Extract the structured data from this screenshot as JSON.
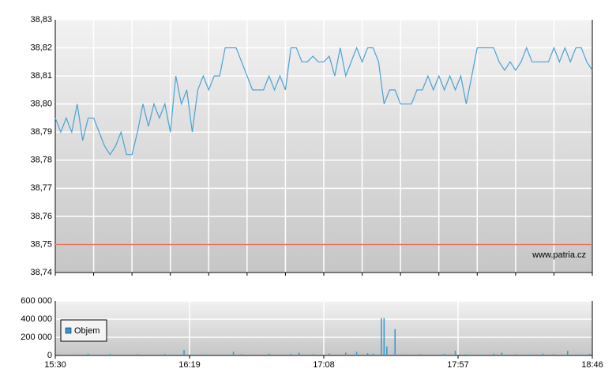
{
  "chart_data": [
    {
      "type": "line",
      "color": "#4aa3d4",
      "xlim": [
        930,
        1126
      ],
      "xticks": [
        930,
        944,
        958,
        972,
        986,
        1000,
        1014,
        1028,
        1042,
        1056,
        1070,
        1084,
        1098,
        1112,
        1126
      ],
      "ylim": [
        38.74,
        38.83
      ],
      "yticks": [
        {
          "value": 38.74,
          "label": "38,74"
        },
        {
          "value": 38.75,
          "label": "38,75"
        },
        {
          "value": 38.76,
          "label": "38,76"
        },
        {
          "value": 38.77,
          "label": "38,77"
        },
        {
          "value": 38.78,
          "label": "38,78"
        },
        {
          "value": 38.79,
          "label": "38,79"
        },
        {
          "value": 38.8,
          "label": "38,80"
        },
        {
          "value": 38.81,
          "label": "38,81"
        },
        {
          "value": 38.82,
          "label": "38,82"
        },
        {
          "value": 38.83,
          "label": "38,83"
        }
      ],
      "grid": true,
      "reference_line": 38.75,
      "reference_color": "#e8705e",
      "watermark": "www.patria.cz",
      "x": [
        930,
        932,
        934,
        936,
        938,
        940,
        942,
        944,
        946,
        948,
        950,
        952,
        954,
        956,
        958,
        960,
        962,
        964,
        966,
        968,
        970,
        972,
        974,
        976,
        978,
        980,
        982,
        984,
        986,
        988,
        990,
        992,
        994,
        996,
        998,
        1000,
        1002,
        1004,
        1006,
        1008,
        1010,
        1012,
        1014,
        1016,
        1018,
        1020,
        1022,
        1024,
        1026,
        1028,
        1030,
        1032,
        1034,
        1036,
        1038,
        1040,
        1042,
        1044,
        1046,
        1048,
        1050,
        1052,
        1054,
        1056,
        1058,
        1060,
        1062,
        1064,
        1066,
        1068,
        1070,
        1072,
        1074,
        1076,
        1078,
        1080,
        1082,
        1084,
        1086,
        1088,
        1090,
        1092,
        1094,
        1096,
        1098,
        1100,
        1102,
        1104,
        1106,
        1108,
        1110,
        1112,
        1114,
        1116,
        1118,
        1120,
        1122,
        1124,
        1126
      ],
      "values": [
        38.795,
        38.79,
        38.795,
        38.79,
        38.8,
        38.787,
        38.795,
        38.795,
        38.79,
        38.785,
        38.782,
        38.785,
        38.79,
        38.782,
        38.782,
        38.79,
        38.8,
        38.792,
        38.8,
        38.795,
        38.8,
        38.79,
        38.81,
        38.8,
        38.805,
        38.79,
        38.805,
        38.81,
        38.805,
        38.81,
        38.81,
        38.82,
        38.82,
        38.82,
        38.815,
        38.81,
        38.805,
        38.805,
        38.805,
        38.81,
        38.805,
        38.81,
        38.805,
        38.82,
        38.82,
        38.815,
        38.815,
        38.817,
        38.815,
        38.815,
        38.817,
        38.81,
        38.82,
        38.81,
        38.815,
        38.82,
        38.815,
        38.82,
        38.82,
        38.815,
        38.8,
        38.805,
        38.805,
        38.8,
        38.8,
        38.8,
        38.805,
        38.805,
        38.81,
        38.805,
        38.81,
        38.805,
        38.81,
        38.805,
        38.81,
        38.8,
        38.81,
        38.82,
        38.82,
        38.82,
        38.82,
        38.815,
        38.812,
        38.815,
        38.812,
        38.815,
        38.82,
        38.815,
        38.815,
        38.815,
        38.815,
        38.82,
        38.815,
        38.82,
        38.815,
        38.82,
        38.82,
        38.815,
        38.812
      ]
    },
    {
      "type": "bar",
      "xlim": [
        930,
        1126
      ],
      "xticks": [
        {
          "value": 930,
          "label": "15:30"
        },
        {
          "value": 979,
          "label": "16:19"
        },
        {
          "value": 1028,
          "label": "17:08"
        },
        {
          "value": 1077,
          "label": "17:57"
        },
        {
          "value": 1126,
          "label": "18:46"
        }
      ],
      "ylim": [
        0,
        600000
      ],
      "yticks": [
        {
          "value": 0,
          "label": "0"
        },
        {
          "value": 200000,
          "label": "200 000"
        },
        {
          "value": 400000,
          "label": "400 000"
        },
        {
          "value": 600000,
          "label": "600 000"
        }
      ],
      "grid": true,
      "legend": "left",
      "series": [
        {
          "name": "Objem",
          "color": "#3399cc",
          "x": [
            931,
            934,
            938,
            942,
            946,
            950,
            955,
            960,
            965,
            970,
            977,
            980,
            985,
            990,
            995,
            998,
            1003,
            1008,
            1012,
            1016,
            1019,
            1024,
            1030,
            1036,
            1040,
            1044,
            1046,
            1049,
            1050,
            1051,
            1054,
            1058,
            1063,
            1068,
            1072,
            1076,
            1080,
            1085,
            1090,
            1093,
            1098,
            1103,
            1108,
            1112,
            1117,
            1121,
            1125
          ],
          "values": [
            15000,
            8000,
            12000,
            20000,
            10000,
            18000,
            9000,
            14000,
            11000,
            16000,
            60000,
            10000,
            12000,
            9000,
            40000,
            15000,
            10000,
            20000,
            12000,
            18000,
            30000,
            14000,
            22000,
            30000,
            40000,
            25000,
            20000,
            410000,
            410000,
            100000,
            290000,
            12000,
            15000,
            10000,
            18000,
            50000,
            14000,
            12000,
            20000,
            30000,
            15000,
            12000,
            20000,
            15000,
            50000,
            12000,
            18000
          ]
        }
      ]
    }
  ]
}
